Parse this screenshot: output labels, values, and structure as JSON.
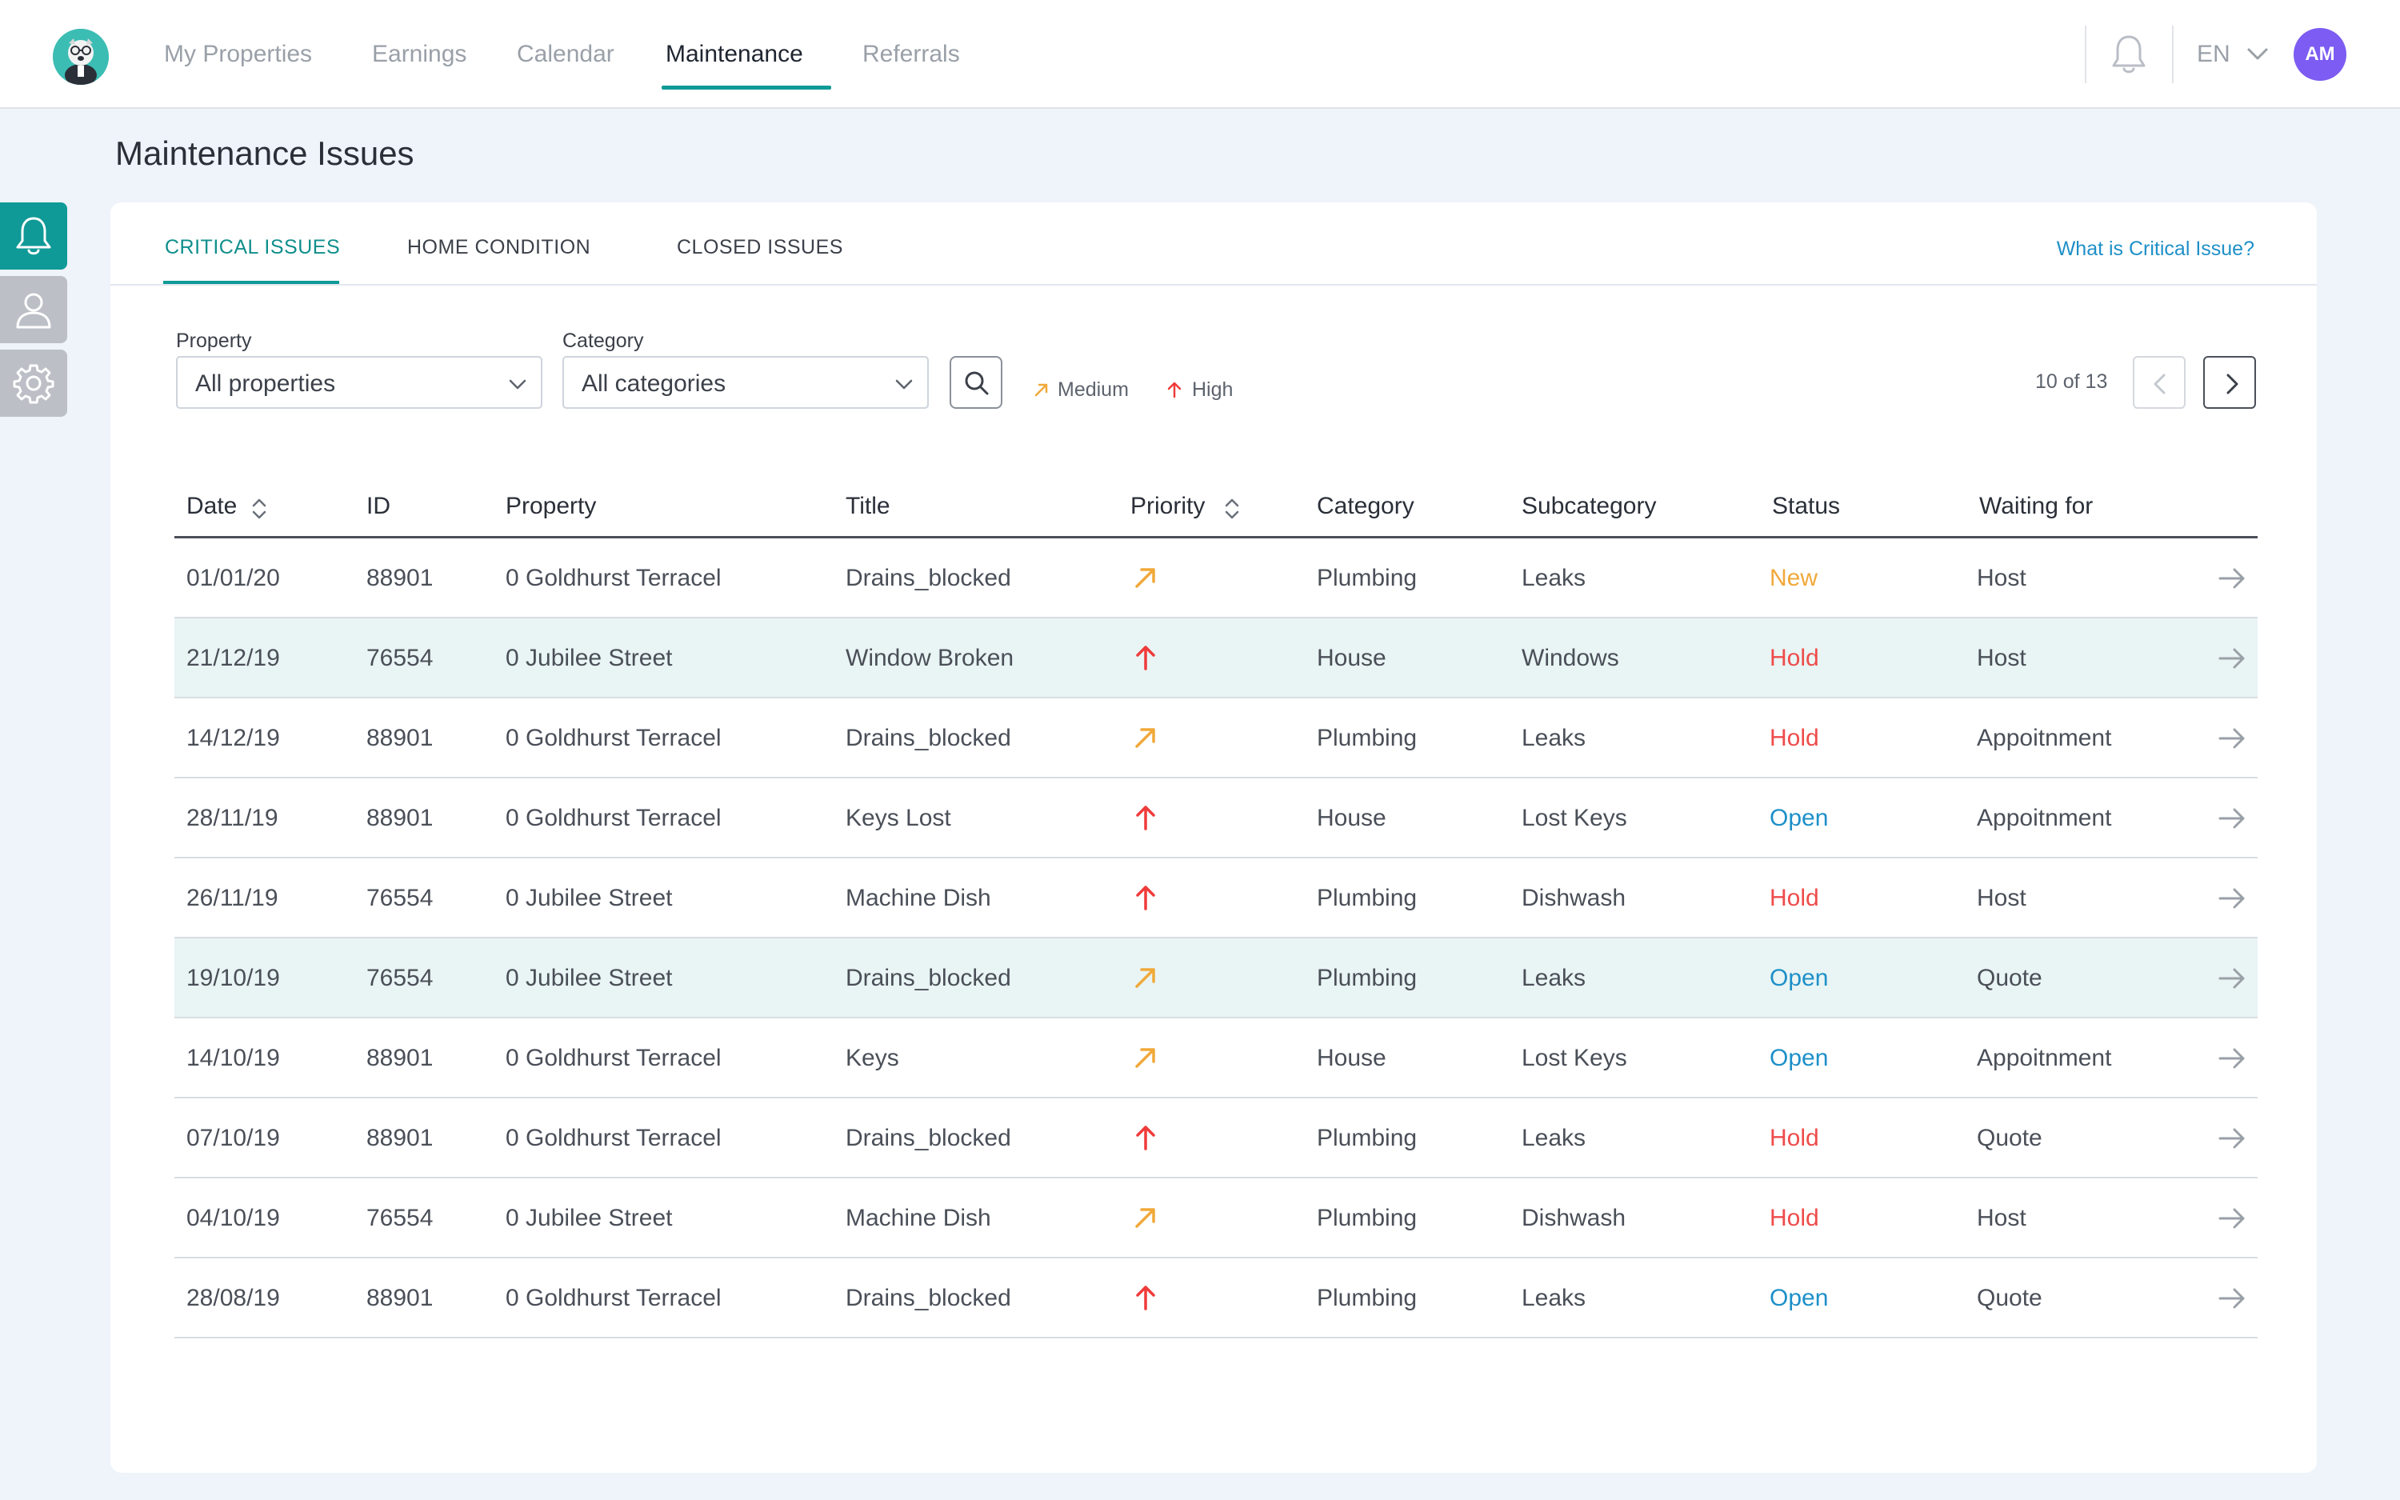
{
  "nav": {
    "items": [
      {
        "label": "My Properties"
      },
      {
        "label": "Earnings"
      },
      {
        "label": "Calendar"
      },
      {
        "label": "Maintenance"
      },
      {
        "label": "Referrals"
      }
    ],
    "active": "Maintenance",
    "language": "EN",
    "avatar_initials": "AM"
  },
  "page": {
    "title": "Maintenance Issues"
  },
  "tabs": [
    {
      "label": "CRITICAL ISSUES"
    },
    {
      "label": "HOME CONDITION"
    },
    {
      "label": "CLOSED ISSUES"
    }
  ],
  "help_link": "What is Critical Issue?",
  "filters": {
    "property": {
      "label": "Property",
      "value": "All properties"
    },
    "category": {
      "label": "Category",
      "value": "All categories"
    }
  },
  "legend": {
    "medium": "Medium",
    "high": "High"
  },
  "pagination": {
    "text": "10 of 13"
  },
  "table": {
    "headers": {
      "date": "Date",
      "id": "ID",
      "property": "Property",
      "title": "Title",
      "priority": "Priority",
      "category": "Category",
      "subcategory": "Subcategory",
      "status": "Status",
      "waiting_for": "Waiting for"
    },
    "rows": [
      {
        "date": "01/01/20",
        "id": "88901",
        "property": "0 Goldhurst Terracel",
        "title": "Drains_blocked",
        "priority": "medium",
        "category": "Plumbing",
        "subcategory": "Leaks",
        "status": "New",
        "waiting_for": "Host",
        "highlighted": false
      },
      {
        "date": "21/12/19",
        "id": "76554",
        "property": "0 Jubilee Street",
        "title": "Window Broken",
        "priority": "high",
        "category": "House",
        "subcategory": "Windows",
        "status": "Hold",
        "waiting_for": "Host",
        "highlighted": true
      },
      {
        "date": "14/12/19",
        "id": "88901",
        "property": "0 Goldhurst Terracel",
        "title": "Drains_blocked",
        "priority": "medium",
        "category": "Plumbing",
        "subcategory": "Leaks",
        "status": "Hold",
        "waiting_for": "Appoitnment",
        "highlighted": false
      },
      {
        "date": "28/11/19",
        "id": "88901",
        "property": "0 Goldhurst Terracel",
        "title": "Keys Lost",
        "priority": "high",
        "category": "House",
        "subcategory": "Lost Keys",
        "status": "Open",
        "waiting_for": "Appoitnment",
        "highlighted": false
      },
      {
        "date": "26/11/19",
        "id": "76554",
        "property": "0 Jubilee Street",
        "title": "Machine Dish",
        "priority": "high",
        "category": "Plumbing",
        "subcategory": "Dishwash",
        "status": "Hold",
        "waiting_for": "Host",
        "highlighted": false
      },
      {
        "date": "19/10/19",
        "id": "76554",
        "property": "0 Jubilee Street",
        "title": "Drains_blocked",
        "priority": "medium",
        "category": "Plumbing",
        "subcategory": "Leaks",
        "status": "Open",
        "waiting_for": "Quote",
        "highlighted": true
      },
      {
        "date": "14/10/19",
        "id": "88901",
        "property": "0 Goldhurst Terracel",
        "title": "Keys",
        "priority": "medium",
        "category": "House",
        "subcategory": "Lost Keys",
        "status": "Open",
        "waiting_for": "Appoitnment",
        "highlighted": false
      },
      {
        "date": "07/10/19",
        "id": "88901",
        "property": "0 Goldhurst Terracel",
        "title": "Drains_blocked",
        "priority": "high",
        "category": "Plumbing",
        "subcategory": "Leaks",
        "status": "Hold",
        "waiting_for": "Quote",
        "highlighted": false
      },
      {
        "date": "04/10/19",
        "id": "76554",
        "property": "0 Jubilee Street",
        "title": "Machine Dish",
        "priority": "medium",
        "category": "Plumbing",
        "subcategory": "Dishwash",
        "status": "Hold",
        "waiting_for": "Host",
        "highlighted": false
      },
      {
        "date": "28/08/19",
        "id": "88901",
        "property": "0 Goldhurst Terracel",
        "title": "Drains_blocked",
        "priority": "high",
        "category": "Plumbing",
        "subcategory": "Leaks",
        "status": "Open",
        "waiting_for": "Quote",
        "highlighted": false
      }
    ]
  },
  "colors": {
    "accent": "#0f9a97",
    "status_new": "#f0a93a",
    "status_hold": "#ef4b4b",
    "status_open": "#1e90c8",
    "priority_medium": "#f0a93a",
    "priority_high": "#ef3b3b",
    "avatar": "#7c5cf2"
  },
  "icons": {
    "rail": [
      "bell-icon",
      "user-icon",
      "gear-icon"
    ],
    "row_action": "arrow-right-icon"
  }
}
